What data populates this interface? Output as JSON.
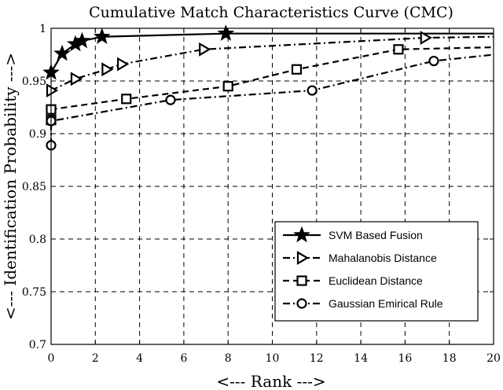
{
  "chart_data": {
    "type": "line",
    "title": "Cumulative Match Characteristics Curve (CMC)",
    "xlabel": "<--- Rank --->",
    "ylabel": "<--- Identification Probability --->",
    "xlim": [
      0,
      20
    ],
    "ylim": [
      0.7,
      1.0
    ],
    "xticks": [
      0,
      2,
      4,
      6,
      8,
      10,
      12,
      14,
      16,
      18,
      20
    ],
    "yticks": [
      0.7,
      0.75,
      0.8,
      0.85,
      0.9,
      0.95,
      1
    ],
    "ytick_labels": [
      "0.7",
      "0.75",
      "0.8",
      "0.85",
      "0.9",
      "0.95",
      "1"
    ],
    "grid": true,
    "legend_position": "lower-right",
    "series": [
      {
        "name": "SVM Based Fusion",
        "marker": "star",
        "dash": "solid",
        "x": [
          0,
          0.5,
          1.1,
          1.4,
          2.3,
          7.9,
          20
        ],
        "y": [
          0.958,
          0.976,
          0.985,
          0.988,
          0.992,
          0.995,
          0.995
        ]
      },
      {
        "name": "Mahalanobis Distance",
        "marker": "triangle-right",
        "dash": "dashdot",
        "x": [
          0,
          1.1,
          2.5,
          3.2,
          6.9,
          16.9,
          20
        ],
        "y": [
          0.941,
          0.952,
          0.961,
          0.966,
          0.98,
          0.991,
          0.992
        ]
      },
      {
        "name": "Euclidean Distance",
        "marker": "square",
        "dash": "dashed",
        "x": [
          0,
          0,
          3.4,
          8.0,
          11.1,
          15.7,
          20
        ],
        "y": [
          0.913,
          0.923,
          0.933,
          0.945,
          0.961,
          0.98,
          0.982
        ]
      },
      {
        "name": "Gaussian Emirical Rule",
        "marker": "circle",
        "dash": "dashdot",
        "x": [
          0,
          0,
          5.4,
          11.8,
          17.3,
          20
        ],
        "y": [
          0.889,
          0.912,
          0.932,
          0.941,
          0.969,
          0.975
        ]
      }
    ]
  }
}
